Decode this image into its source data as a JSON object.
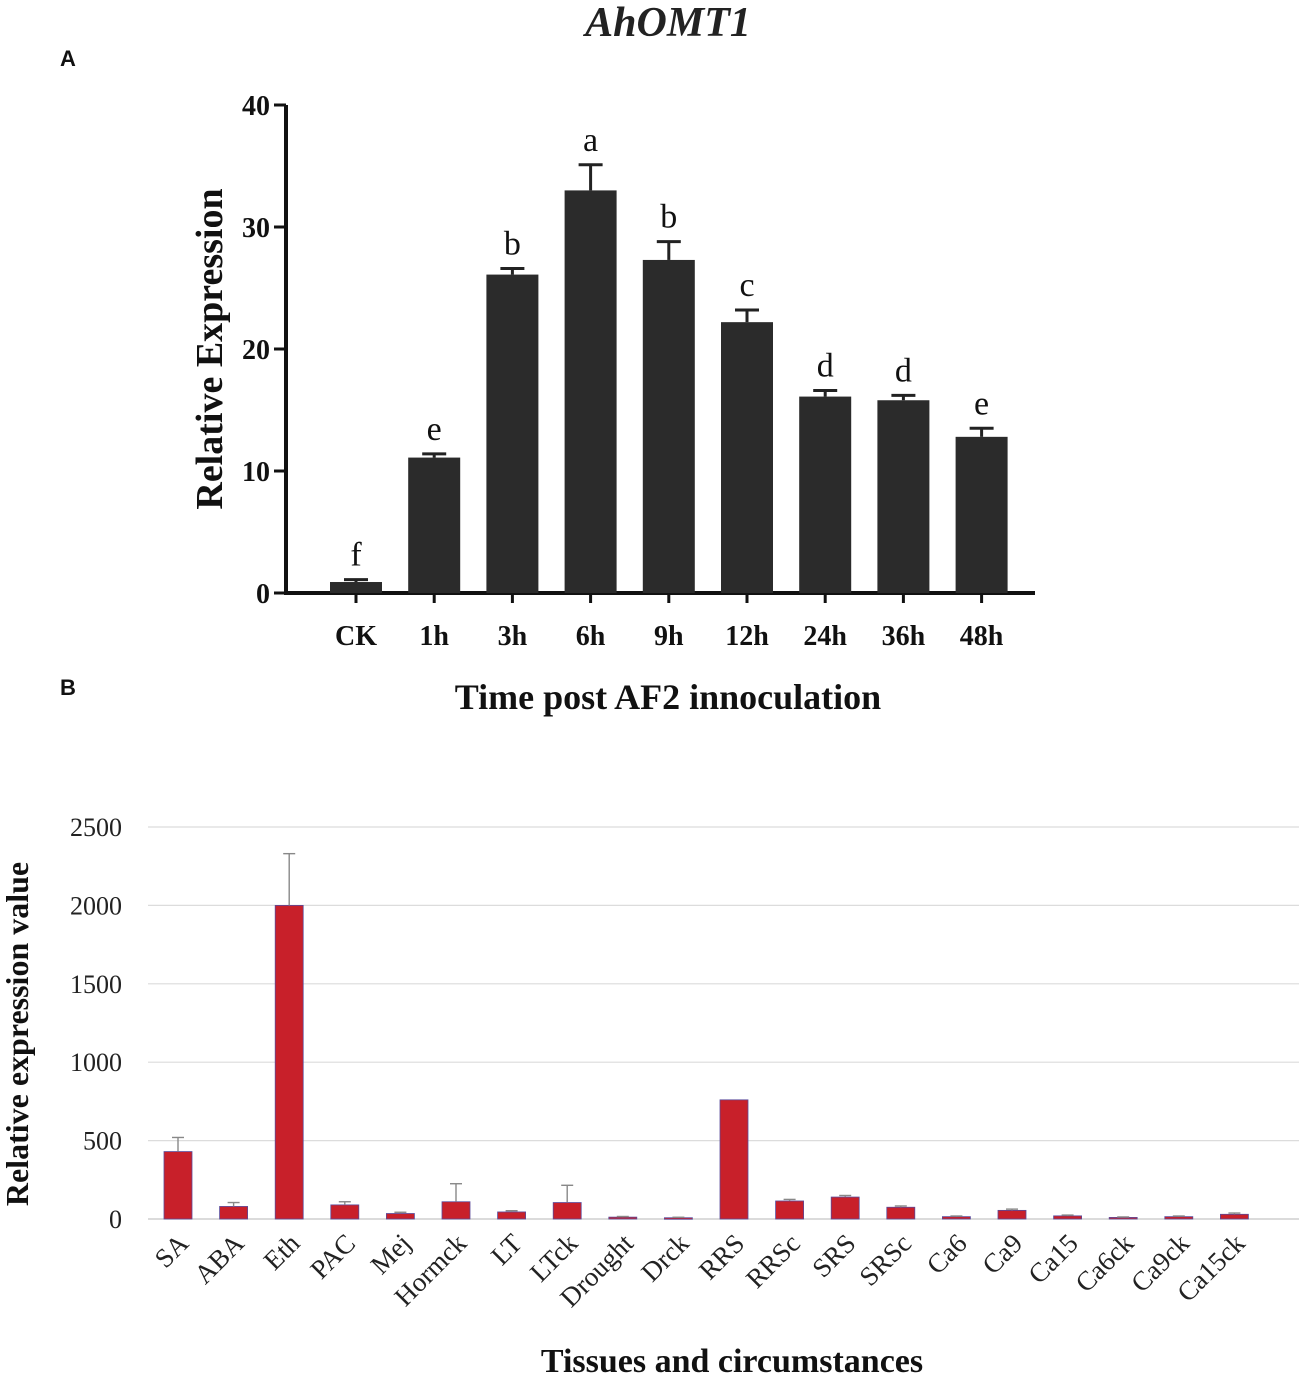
{
  "figure_title": "AhOMT1",
  "chart_data": [
    {
      "panel_label": "A",
      "type": "bar",
      "categories": [
        "CK",
        "1h",
        "3h",
        "6h",
        "9h",
        "12h",
        "24h",
        "36h",
        "48h"
      ],
      "values": [
        0.9,
        11.1,
        26.1,
        33.0,
        27.3,
        22.2,
        16.1,
        15.8,
        12.8
      ],
      "errors": [
        0.2,
        0.3,
        0.5,
        2.1,
        1.5,
        1.0,
        0.5,
        0.4,
        0.7
      ],
      "significance_letters": [
        "f",
        "e",
        "b",
        "a",
        "b",
        "c",
        "d",
        "d",
        "e"
      ],
      "xlabel": "Time post AF2 innoculation",
      "ylabel": "Relative Expression",
      "ylim": [
        0,
        40
      ],
      "yticks": [
        0,
        10,
        20,
        30,
        40
      ],
      "bar_color": "#2b2b2b",
      "grid": false
    },
    {
      "panel_label": "B",
      "type": "bar",
      "categories": [
        "SA",
        "ABA",
        "Eth",
        "PAC",
        "Mej",
        "Hormck",
        "LT",
        "LTck",
        "Drought",
        "Drck",
        "RRS",
        "RRSc",
        "SRS",
        "SRSc",
        "Ca6",
        "Ca9",
        "Ca15",
        "Ca6ck",
        "Ca9ck",
        "Ca15ck"
      ],
      "values": [
        430,
        80,
        2000,
        90,
        35,
        110,
        45,
        105,
        12,
        8,
        760,
        115,
        140,
        75,
        15,
        55,
        20,
        10,
        15,
        30
      ],
      "errors": [
        90,
        25,
        330,
        20,
        8,
        115,
        8,
        110,
        4,
        3,
        0,
        10,
        10,
        8,
        4,
        8,
        5,
        3,
        4,
        8
      ],
      "xlabel": "Tissues and circumstances",
      "ylabel": "Relative expression value",
      "ylim": [
        0,
        2500
      ],
      "yticks": [
        0,
        500,
        1000,
        1500,
        2000,
        2500
      ],
      "bar_color": "#c8202a",
      "grid": true
    }
  ]
}
